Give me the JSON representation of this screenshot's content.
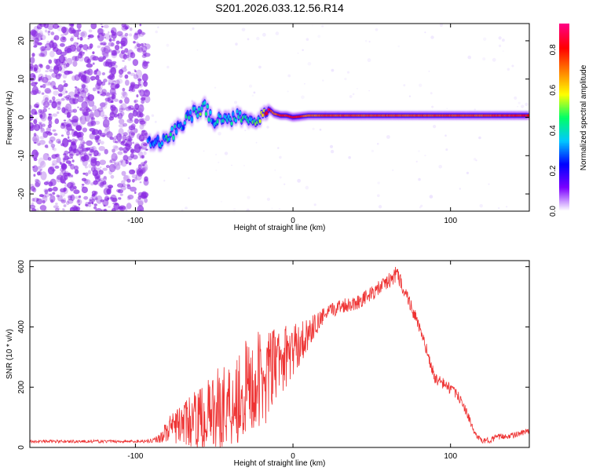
{
  "figure_title": "S201.2026.033.12.56.R14",
  "colors": {
    "snr_line": "#ee3333",
    "spectrogram_speckle": "#8a2be2",
    "colormap": [
      "#ffffff",
      "#7b00ff",
      "#0000ff",
      "#00c8ff",
      "#00ff66",
      "#ffff00",
      "#ff8000",
      "#ff0000",
      "#ff0080"
    ]
  },
  "chart_data": [
    {
      "type": "heatmap",
      "title": "",
      "xlabel": "Height of straight line (km)",
      "ylabel": "Frequency (Hz)",
      "xlim": [
        -167,
        150
      ],
      "ylim": [
        -24.5,
        24.5
      ],
      "xticks": [
        -100,
        0,
        100
      ],
      "xtick_labels": [
        "-100",
        "0",
        "100"
      ],
      "yticks": [
        -20,
        -10,
        0,
        10,
        20
      ],
      "ytick_labels": [
        "-20",
        "-10",
        "0",
        "10",
        "20"
      ],
      "colorbar": {
        "label": "Normalized spectral amplitude",
        "range": [
          0,
          0.93
        ],
        "ticks": [
          0,
          0.2,
          0.4,
          0.6,
          0.8
        ],
        "tick_labels": [
          "0.0",
          "0.2",
          "0.4",
          "0.6",
          "0.8"
        ]
      },
      "noise_region_x": [
        -167,
        -92
      ],
      "carrier_track": {
        "x": [
          -92,
          -88,
          -84,
          -80,
          -76,
          -72,
          -68,
          -64,
          -60,
          -56,
          -52,
          -48,
          -44,
          -40,
          -36,
          -32,
          -28,
          -24,
          -20,
          -16,
          -12,
          -8,
          -4,
          0,
          10,
          20,
          40,
          60,
          80,
          100,
          120,
          150
        ],
        "frequency": [
          -5.5,
          -6,
          -6,
          -5,
          -4,
          -2,
          -1,
          1,
          2,
          2.5,
          0,
          -1,
          -0.5,
          -1,
          0.5,
          -1,
          0,
          -0.5,
          0,
          2.5,
          1,
          0.5,
          0.5,
          0,
          0.5,
          0.5,
          0.5,
          0.5,
          0.5,
          0.5,
          0.5,
          0.5
        ],
        "amplitude": [
          0.3,
          0.35,
          0.35,
          0.4,
          0.35,
          0.3,
          0.35,
          0.4,
          0.45,
          0.4,
          0.35,
          0.35,
          0.4,
          0.35,
          0.35,
          0.4,
          0.4,
          0.45,
          0.5,
          0.85,
          0.7,
          0.8,
          0.8,
          0.85,
          0.7,
          0.75,
          0.75,
          0.75,
          0.75,
          0.75,
          0.75,
          0.8
        ]
      }
    },
    {
      "type": "line",
      "title": "",
      "xlabel": "Height of straight line (km)",
      "ylabel": "SNR (10 * v/v)",
      "xlim": [
        -167,
        150
      ],
      "ylim": [
        0,
        620
      ],
      "xticks": [
        -100,
        0,
        100
      ],
      "xtick_labels": [
        "-100",
        "0",
        "100"
      ],
      "yticks": [
        0,
        200,
        400,
        600
      ],
      "ytick_labels": [
        "0",
        "200",
        "400",
        "600"
      ],
      "series": [
        {
          "x": [
            -167,
            -100,
            -90,
            -85,
            -80,
            -70,
            -60,
            -50,
            -40,
            -30,
            -20,
            -10,
            0,
            10,
            20,
            30,
            40,
            50,
            60,
            66,
            70,
            75,
            80,
            85,
            90,
            100,
            105,
            110,
            115,
            120,
            125,
            130,
            140,
            150
          ],
          "mean": [
            20,
            20,
            22,
            30,
            55,
            80,
            95,
            120,
            150,
            190,
            220,
            280,
            320,
            380,
            440,
            470,
            480,
            510,
            550,
            575,
            530,
            470,
            400,
            320,
            230,
            195,
            170,
            120,
            50,
            20,
            25,
            35,
            40,
            55
          ],
          "jitter": [
            5,
            5,
            6,
            15,
            40,
            70,
            100,
            130,
            160,
            170,
            170,
            120,
            90,
            50,
            25,
            25,
            25,
            25,
            25,
            30,
            25,
            25,
            20,
            20,
            20,
            20,
            15,
            15,
            10,
            8,
            10,
            10,
            10,
            10
          ]
        }
      ]
    }
  ]
}
